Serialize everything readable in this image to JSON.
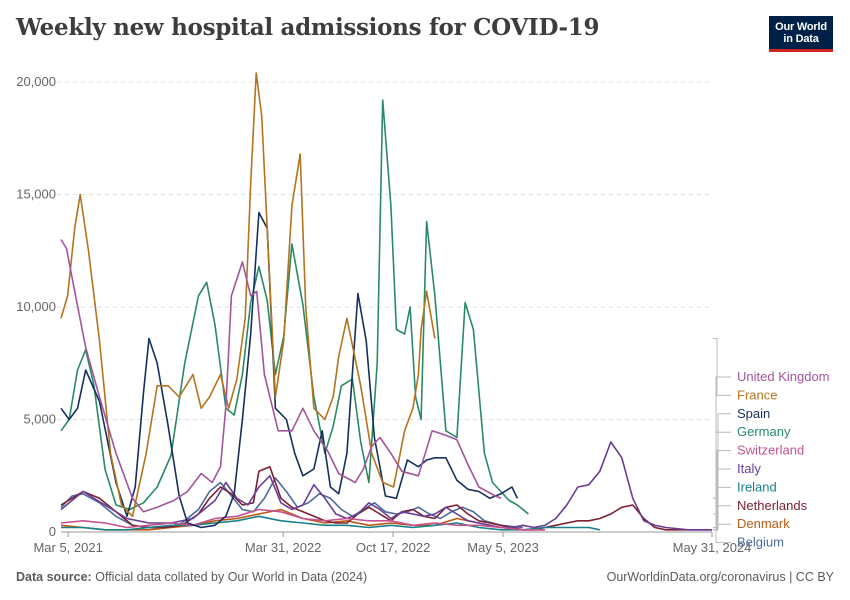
{
  "header": {
    "title": "Weekly new hospital admissions for COVID-19",
    "logo_line1": "Our World",
    "logo_line2": "in Data",
    "logo_bg": "#002147",
    "logo_accent": "#ce261e"
  },
  "footer": {
    "source_label": "Data source:",
    "source_text": "Official data collated by Our World in Data (2024)",
    "link_text": "OurWorldinData.org/coronavirus | CC BY"
  },
  "chart_data": {
    "type": "line",
    "title": "Weekly new hospital admissions for COVID-19",
    "xlabel": "",
    "ylabel": "",
    "xlim": [
      0,
      1184
    ],
    "ylim": [
      0,
      20000
    ],
    "x_unit": "days since Feb 20, 2021",
    "grid": true,
    "y_ticks": [
      0,
      5000,
      10000,
      15000,
      20000
    ],
    "y_tick_labels": [
      "0",
      "5,000",
      "10,000",
      "15,000",
      "20,000"
    ],
    "x_ticks": [
      13,
      404,
      604,
      804,
      1196
    ],
    "x_tick_labels": [
      "Mar 5, 2021",
      "Mar 31, 2022",
      "Oct 17, 2022",
      "May 5, 2023",
      "May 31, 2024"
    ],
    "legend_position": "right",
    "series": [
      {
        "name": "United Kingdom",
        "color": "#a2559c",
        "x": [
          0,
          10,
          25,
          45,
          70,
          100,
          130,
          150,
          175,
          205,
          230,
          255,
          275,
          290,
          300,
          310,
          330,
          345,
          356,
          370,
          395,
          420,
          440,
          460,
          485,
          505,
          535,
          550,
          565,
          580,
          600,
          620,
          650,
          675,
          700,
          720,
          740,
          760,
          790,
          800
        ],
        "y": [
          13000,
          12600,
          10700,
          8200,
          6000,
          3500,
          1500,
          900,
          1100,
          1400,
          1800,
          2600,
          2200,
          2900,
          5600,
          10500,
          12000,
          10500,
          10700,
          7000,
          4500,
          4500,
          5500,
          4500,
          3600,
          2600,
          2200,
          2800,
          3800,
          4200,
          3500,
          2700,
          2500,
          4500,
          4300,
          4100,
          3000,
          2000,
          1600,
          1500
        ]
      },
      {
        "name": "France",
        "color": "#b5731d",
        "x": [
          0,
          12,
          25,
          35,
          50,
          70,
          90,
          110,
          130,
          155,
          175,
          195,
          215,
          240,
          255,
          270,
          290,
          305,
          320,
          335,
          345,
          355,
          365,
          375,
          390,
          405,
          420,
          435,
          445,
          460,
          480,
          495,
          505,
          520,
          545,
          565,
          585,
          605,
          625,
          640,
          650,
          655,
          665,
          680
        ],
        "y": [
          9500,
          10500,
          13500,
          15000,
          12500,
          8500,
          3500,
          1200,
          700,
          3500,
          6500,
          6500,
          6000,
          7000,
          5500,
          6000,
          7000,
          5500,
          6800,
          9500,
          15500,
          20400,
          18500,
          13500,
          6000,
          8500,
          14500,
          16800,
          10000,
          5500,
          5000,
          6000,
          7800,
          9500,
          6500,
          3500,
          2200,
          2000,
          4500,
          5500,
          7000,
          9000,
          10700,
          8600
        ]
      },
      {
        "name": "Spain",
        "color": "#15305d",
        "x": [
          0,
          15,
          30,
          45,
          70,
          100,
          120,
          135,
          150,
          160,
          175,
          195,
          215,
          230,
          255,
          280,
          300,
          315,
          330,
          345,
          360,
          375,
          390,
          410,
          425,
          440,
          460,
          475,
          490,
          505,
          520,
          540,
          555,
          570,
          590,
          610,
          630,
          650,
          665,
          680,
          700,
          720,
          740,
          760,
          780,
          800,
          820,
          830
        ],
        "y": [
          5500,
          5000,
          5500,
          7200,
          5800,
          2200,
          700,
          2000,
          6200,
          8600,
          7500,
          4700,
          1600,
          400,
          200,
          300,
          700,
          1700,
          5000,
          8800,
          14200,
          13500,
          5500,
          5000,
          3500,
          2500,
          2800,
          4500,
          2000,
          1700,
          3500,
          10600,
          8500,
          4200,
          1600,
          1500,
          3200,
          2900,
          3200,
          3300,
          3300,
          2300,
          1900,
          1800,
          1500,
          1700,
          2000,
          1500
        ]
      },
      {
        "name": "Germany",
        "color": "#2a8a64",
        "x": [
          0,
          15,
          30,
          45,
          60,
          80,
          100,
          125,
          150,
          175,
          200,
          225,
          250,
          265,
          280,
          300,
          315,
          330,
          345,
          360,
          375,
          390,
          405,
          420,
          440,
          460,
          480,
          495,
          510,
          530,
          545,
          560,
          575,
          585,
          600,
          610,
          625,
          635,
          645,
          655,
          665,
          680,
          700,
          720,
          735,
          750,
          770,
          785,
          800,
          815,
          830,
          850
        ],
        "y": [
          4500,
          5000,
          7200,
          8100,
          6500,
          2800,
          1200,
          1000,
          1300,
          2000,
          3400,
          7500,
          10500,
          11100,
          9200,
          5500,
          5200,
          7000,
          10200,
          11800,
          10300,
          7000,
          8700,
          12800,
          10100,
          6000,
          3500,
          4700,
          6500,
          6800,
          4000,
          2200,
          7500,
          19200,
          14500,
          9000,
          8800,
          10000,
          6000,
          5000,
          13800,
          10500,
          4500,
          4200,
          10200,
          9000,
          3500,
          2200,
          1800,
          1400,
          1200,
          800
        ]
      },
      {
        "name": "Switzerland",
        "color": "#c4528f",
        "x": [
          0,
          40,
          80,
          120,
          160,
          200,
          240,
          280,
          320,
          360,
          400,
          440,
          480,
          520,
          560,
          600,
          640,
          680,
          720,
          760,
          800,
          840,
          880
        ],
        "y": [
          400,
          500,
          400,
          200,
          300,
          400,
          300,
          600,
          700,
          1000,
          900,
          600,
          500,
          600,
          500,
          500,
          300,
          400,
          300,
          300,
          200,
          100,
          100
        ]
      },
      {
        "name": "Italy",
        "color": "#6a3c95",
        "x": [
          0,
          40,
          80,
          120,
          160,
          200,
          240,
          280,
          300,
          320,
          340,
          360,
          380,
          400,
          420,
          440,
          460,
          480,
          500,
          520,
          540,
          560,
          580,
          600,
          620,
          640,
          660,
          680,
          700,
          720,
          740,
          760,
          780,
          800,
          820,
          840,
          860,
          880,
          900,
          920,
          940,
          960,
          980,
          1000,
          1020,
          1040,
          1060,
          1080,
          1100,
          1140,
          1184
        ],
        "y": [
          1000,
          1800,
          1200,
          600,
          400,
          400,
          600,
          1400,
          2200,
          1500,
          1200,
          2000,
          2500,
          1300,
          1000,
          1200,
          2100,
          1500,
          800,
          600,
          800,
          1300,
          1000,
          600,
          900,
          800,
          700,
          800,
          1100,
          800,
          500,
          400,
          300,
          200,
          200,
          300,
          200,
          300,
          600,
          1200,
          2000,
          2100,
          2700,
          4000,
          3300,
          1500,
          500,
          300,
          200,
          100,
          100
        ]
      },
      {
        "name": "Ireland",
        "color": "#18818a",
        "x": [
          0,
          40,
          80,
          120,
          160,
          200,
          240,
          280,
          320,
          360,
          400,
          440,
          480,
          520,
          560,
          600,
          640,
          680,
          720,
          760,
          800,
          840,
          880,
          920,
          960,
          980
        ],
        "y": [
          200,
          200,
          100,
          100,
          200,
          300,
          300,
          400,
          500,
          700,
          500,
          400,
          300,
          300,
          200,
          300,
          200,
          300,
          400,
          200,
          100,
          100,
          200,
          200,
          200,
          100
        ]
      },
      {
        "name": "Netherlands",
        "color": "#7e2031",
        "x": [
          0,
          20,
          40,
          70,
          100,
          130,
          160,
          190,
          220,
          250,
          270,
          290,
          310,
          330,
          350,
          360,
          380,
          400,
          420,
          440,
          460,
          480,
          500,
          520,
          540,
          560,
          580,
          600,
          620,
          640,
          660,
          680,
          700,
          720,
          740,
          760,
          780,
          800,
          820,
          840,
          860,
          880,
          900,
          920,
          940,
          960,
          980,
          1000,
          1020,
          1040,
          1060,
          1080,
          1100,
          1140,
          1184
        ],
        "y": [
          1200,
          1500,
          1800,
          1500,
          900,
          300,
          200,
          200,
          300,
          800,
          1500,
          2000,
          1700,
          1200,
          1300,
          2700,
          2900,
          1500,
          1100,
          900,
          700,
          500,
          400,
          400,
          800,
          1100,
          800,
          500,
          900,
          1000,
          700,
          600,
          1100,
          1200,
          800,
          500,
          400,
          300,
          200,
          100,
          100,
          200,
          300,
          400,
          500,
          500,
          600,
          800,
          1100,
          1200,
          600,
          200,
          100,
          100,
          100
        ]
      },
      {
        "name": "Denmark",
        "color": "#be5915",
        "x": [
          0,
          40,
          80,
          120,
          160,
          200,
          240,
          280,
          320,
          360,
          400,
          440,
          480,
          520,
          560,
          600,
          640,
          680,
          720,
          760,
          800,
          840,
          880
        ],
        "y": [
          300,
          200,
          100,
          100,
          100,
          200,
          300,
          500,
          600,
          800,
          1000,
          600,
          400,
          500,
          300,
          400,
          300,
          300,
          600,
          400,
          200,
          100,
          100
        ]
      },
      {
        "name": "Belgium",
        "color": "#4c6a9c",
        "x": [
          0,
          20,
          40,
          70,
          100,
          130,
          160,
          190,
          220,
          250,
          270,
          290,
          310,
          330,
          350,
          370,
          390,
          410,
          430,
          450,
          470,
          490,
          510,
          530,
          550,
          570,
          590,
          610,
          630,
          650,
          670,
          690,
          710,
          730,
          750,
          770,
          800,
          840
        ],
        "y": [
          1100,
          1600,
          1700,
          1300,
          700,
          300,
          200,
          200,
          400,
          1000,
          1800,
          2200,
          1600,
          1000,
          900,
          1500,
          2400,
          1800,
          1100,
          1300,
          1700,
          1500,
          1000,
          700,
          1000,
          1300,
          900,
          800,
          900,
          1100,
          800,
          600,
          900,
          1100,
          900,
          500,
          300,
          200
        ]
      }
    ]
  }
}
